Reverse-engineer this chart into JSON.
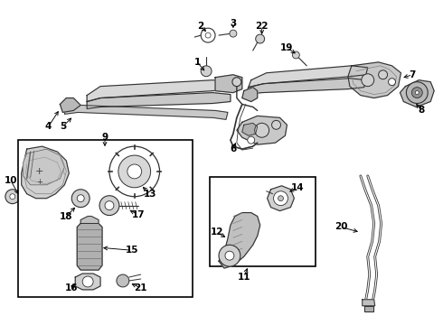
{
  "bg": "#ffffff",
  "lc": "#303030",
  "fig_w": 4.9,
  "fig_h": 3.6,
  "dpi": 100
}
